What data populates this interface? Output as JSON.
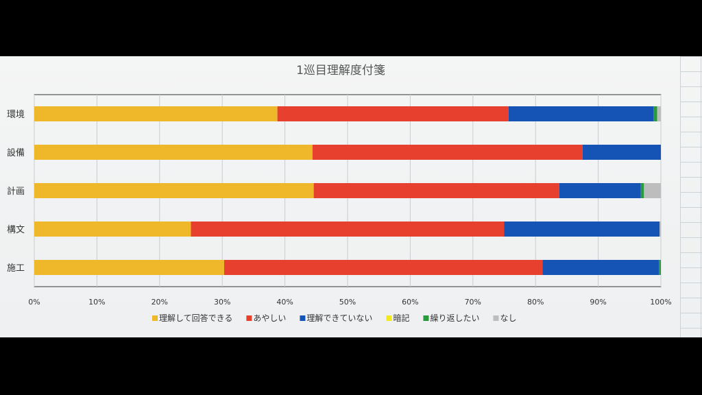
{
  "chart_data": {
    "type": "bar",
    "orientation": "horizontal",
    "stacked": "percent",
    "title": "1巡目理解度付箋",
    "categories": [
      "環境",
      "設備",
      "計画",
      "構文",
      "施工"
    ],
    "series": [
      {
        "name": "理解して回答できる",
        "color": "#efb82a",
        "values": [
          38.8,
          44.4,
          44.6,
          25.0,
          30.3
        ]
      },
      {
        "name": "あやしい",
        "color": "#e8402f",
        "values": [
          36.9,
          43.1,
          39.2,
          50.0,
          50.8
        ]
      },
      {
        "name": "理解できていない",
        "color": "#1553b4",
        "values": [
          23.1,
          12.5,
          13.0,
          24.8,
          18.6
        ]
      },
      {
        "name": "暗記",
        "color": "#f2ea20",
        "values": [
          0,
          0,
          0,
          0,
          0
        ]
      },
      {
        "name": "繰り返したい",
        "color": "#2a9a3c",
        "values": [
          0.6,
          0,
          0.5,
          0,
          0.3
        ]
      },
      {
        "name": "なし",
        "color": "#bdbdbd",
        "values": [
          0.6,
          0,
          2.7,
          0.2,
          0
        ]
      }
    ],
    "x_ticks": [
      "0%",
      "10%",
      "20%",
      "30%",
      "40%",
      "50%",
      "60%",
      "70%",
      "80%",
      "90%",
      "100%"
    ],
    "xlim": [
      0,
      100
    ],
    "grid": true,
    "legend_position": "bottom"
  }
}
